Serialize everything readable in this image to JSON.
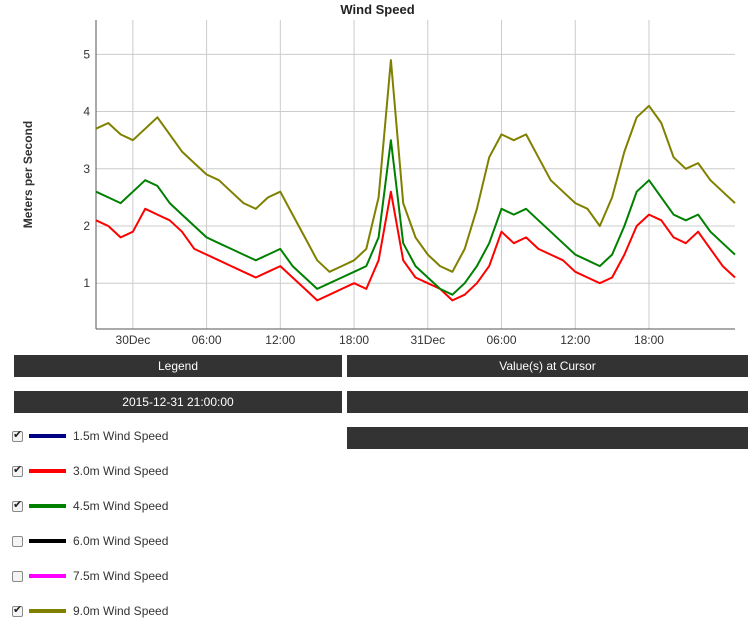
{
  "chart_data": {
    "type": "line",
    "title": "Wind Speed",
    "ylabel": "Meters per Second",
    "xlabel": "",
    "ylim": [
      0.2,
      5.6
    ],
    "yticks": [
      1,
      2,
      3,
      4,
      5
    ],
    "xlim": [
      0,
      52
    ],
    "xticks": [
      {
        "x": 3,
        "label": "30Dec"
      },
      {
        "x": 9,
        "label": "06:00"
      },
      {
        "x": 15,
        "label": "12:00"
      },
      {
        "x": 21,
        "label": "18:00"
      },
      {
        "x": 27,
        "label": "31Dec"
      },
      {
        "x": 33,
        "label": "06:00"
      },
      {
        "x": 39,
        "label": "12:00"
      },
      {
        "x": 45,
        "label": "18:00"
      }
    ],
    "x_unit": "hours since 2015-12-30 21:00 (approx.)",
    "series": [
      {
        "name": "3.0m Wind Speed",
        "color": "#ff0000",
        "x": [
          0,
          1,
          2,
          3,
          4,
          5,
          6,
          7,
          8,
          9,
          10,
          11,
          12,
          13,
          14,
          15,
          16,
          17,
          18,
          19,
          20,
          21,
          22,
          23,
          24,
          25,
          26,
          27,
          28,
          29,
          30,
          31,
          32,
          33,
          34,
          35,
          36,
          37,
          38,
          39,
          40,
          41,
          42,
          43,
          44,
          45,
          46,
          47,
          48,
          49,
          50,
          51,
          52
        ],
        "y": [
          2.1,
          2.0,
          1.8,
          1.9,
          2.3,
          2.2,
          2.1,
          1.9,
          1.6,
          1.5,
          1.4,
          1.3,
          1.2,
          1.1,
          1.2,
          1.3,
          1.1,
          0.9,
          0.7,
          0.8,
          0.9,
          1.0,
          0.9,
          1.4,
          2.6,
          1.4,
          1.1,
          1.0,
          0.9,
          0.7,
          0.8,
          1.0,
          1.3,
          1.9,
          1.7,
          1.8,
          1.6,
          1.5,
          1.4,
          1.2,
          1.1,
          1.0,
          1.1,
          1.5,
          2.0,
          2.2,
          2.1,
          1.8,
          1.7,
          1.9,
          1.6,
          1.3,
          1.1
        ]
      },
      {
        "name": "4.5m Wind Speed",
        "color": "#008000",
        "x": [
          0,
          1,
          2,
          3,
          4,
          5,
          6,
          7,
          8,
          9,
          10,
          11,
          12,
          13,
          14,
          15,
          16,
          17,
          18,
          19,
          20,
          21,
          22,
          23,
          24,
          25,
          26,
          27,
          28,
          29,
          30,
          31,
          32,
          33,
          34,
          35,
          36,
          37,
          38,
          39,
          40,
          41,
          42,
          43,
          44,
          45,
          46,
          47,
          48,
          49,
          50,
          51,
          52
        ],
        "y": [
          2.6,
          2.5,
          2.4,
          2.6,
          2.8,
          2.7,
          2.4,
          2.2,
          2.0,
          1.8,
          1.7,
          1.6,
          1.5,
          1.4,
          1.5,
          1.6,
          1.3,
          1.1,
          0.9,
          1.0,
          1.1,
          1.2,
          1.3,
          1.8,
          3.5,
          1.7,
          1.3,
          1.1,
          0.9,
          0.8,
          1.0,
          1.3,
          1.7,
          2.3,
          2.2,
          2.3,
          2.1,
          1.9,
          1.7,
          1.5,
          1.4,
          1.3,
          1.5,
          2.0,
          2.6,
          2.8,
          2.5,
          2.2,
          2.1,
          2.2,
          1.9,
          1.7,
          1.5
        ]
      },
      {
        "name": "9.0m Wind Speed",
        "color": "#808000",
        "x": [
          0,
          1,
          2,
          3,
          4,
          5,
          6,
          7,
          8,
          9,
          10,
          11,
          12,
          13,
          14,
          15,
          16,
          17,
          18,
          19,
          20,
          21,
          22,
          23,
          24,
          25,
          26,
          27,
          28,
          29,
          30,
          31,
          32,
          33,
          34,
          35,
          36,
          37,
          38,
          39,
          40,
          41,
          42,
          43,
          44,
          45,
          46,
          47,
          48,
          49,
          50,
          51,
          52
        ],
        "y": [
          3.7,
          3.8,
          3.6,
          3.5,
          3.7,
          3.9,
          3.6,
          3.3,
          3.1,
          2.9,
          2.8,
          2.6,
          2.4,
          2.3,
          2.5,
          2.6,
          2.2,
          1.8,
          1.4,
          1.2,
          1.3,
          1.4,
          1.6,
          2.5,
          4.9,
          2.4,
          1.8,
          1.5,
          1.3,
          1.2,
          1.6,
          2.3,
          3.2,
          3.6,
          3.5,
          3.6,
          3.2,
          2.8,
          2.6,
          2.4,
          2.3,
          2.0,
          2.5,
          3.3,
          3.9,
          4.1,
          3.8,
          3.2,
          3.0,
          3.1,
          2.8,
          2.6,
          2.4
        ]
      }
    ]
  },
  "legend": {
    "header": "Legend",
    "timestamp": "2015-12-31 21:00:00",
    "items": [
      {
        "label": "1.5m Wind Speed",
        "color": "#000080",
        "checked": true
      },
      {
        "label": "3.0m Wind Speed",
        "color": "#ff0000",
        "checked": true
      },
      {
        "label": "4.5m Wind Speed",
        "color": "#008000",
        "checked": true
      },
      {
        "label": "6.0m Wind Speed",
        "color": "#000000",
        "checked": false
      },
      {
        "label": "7.5m Wind Speed",
        "color": "#ff00ff",
        "checked": false
      },
      {
        "label": "9.0m Wind Speed",
        "color": "#808000",
        "checked": true
      }
    ]
  },
  "cursor_panel": {
    "header": "Value(s) at Cursor"
  }
}
